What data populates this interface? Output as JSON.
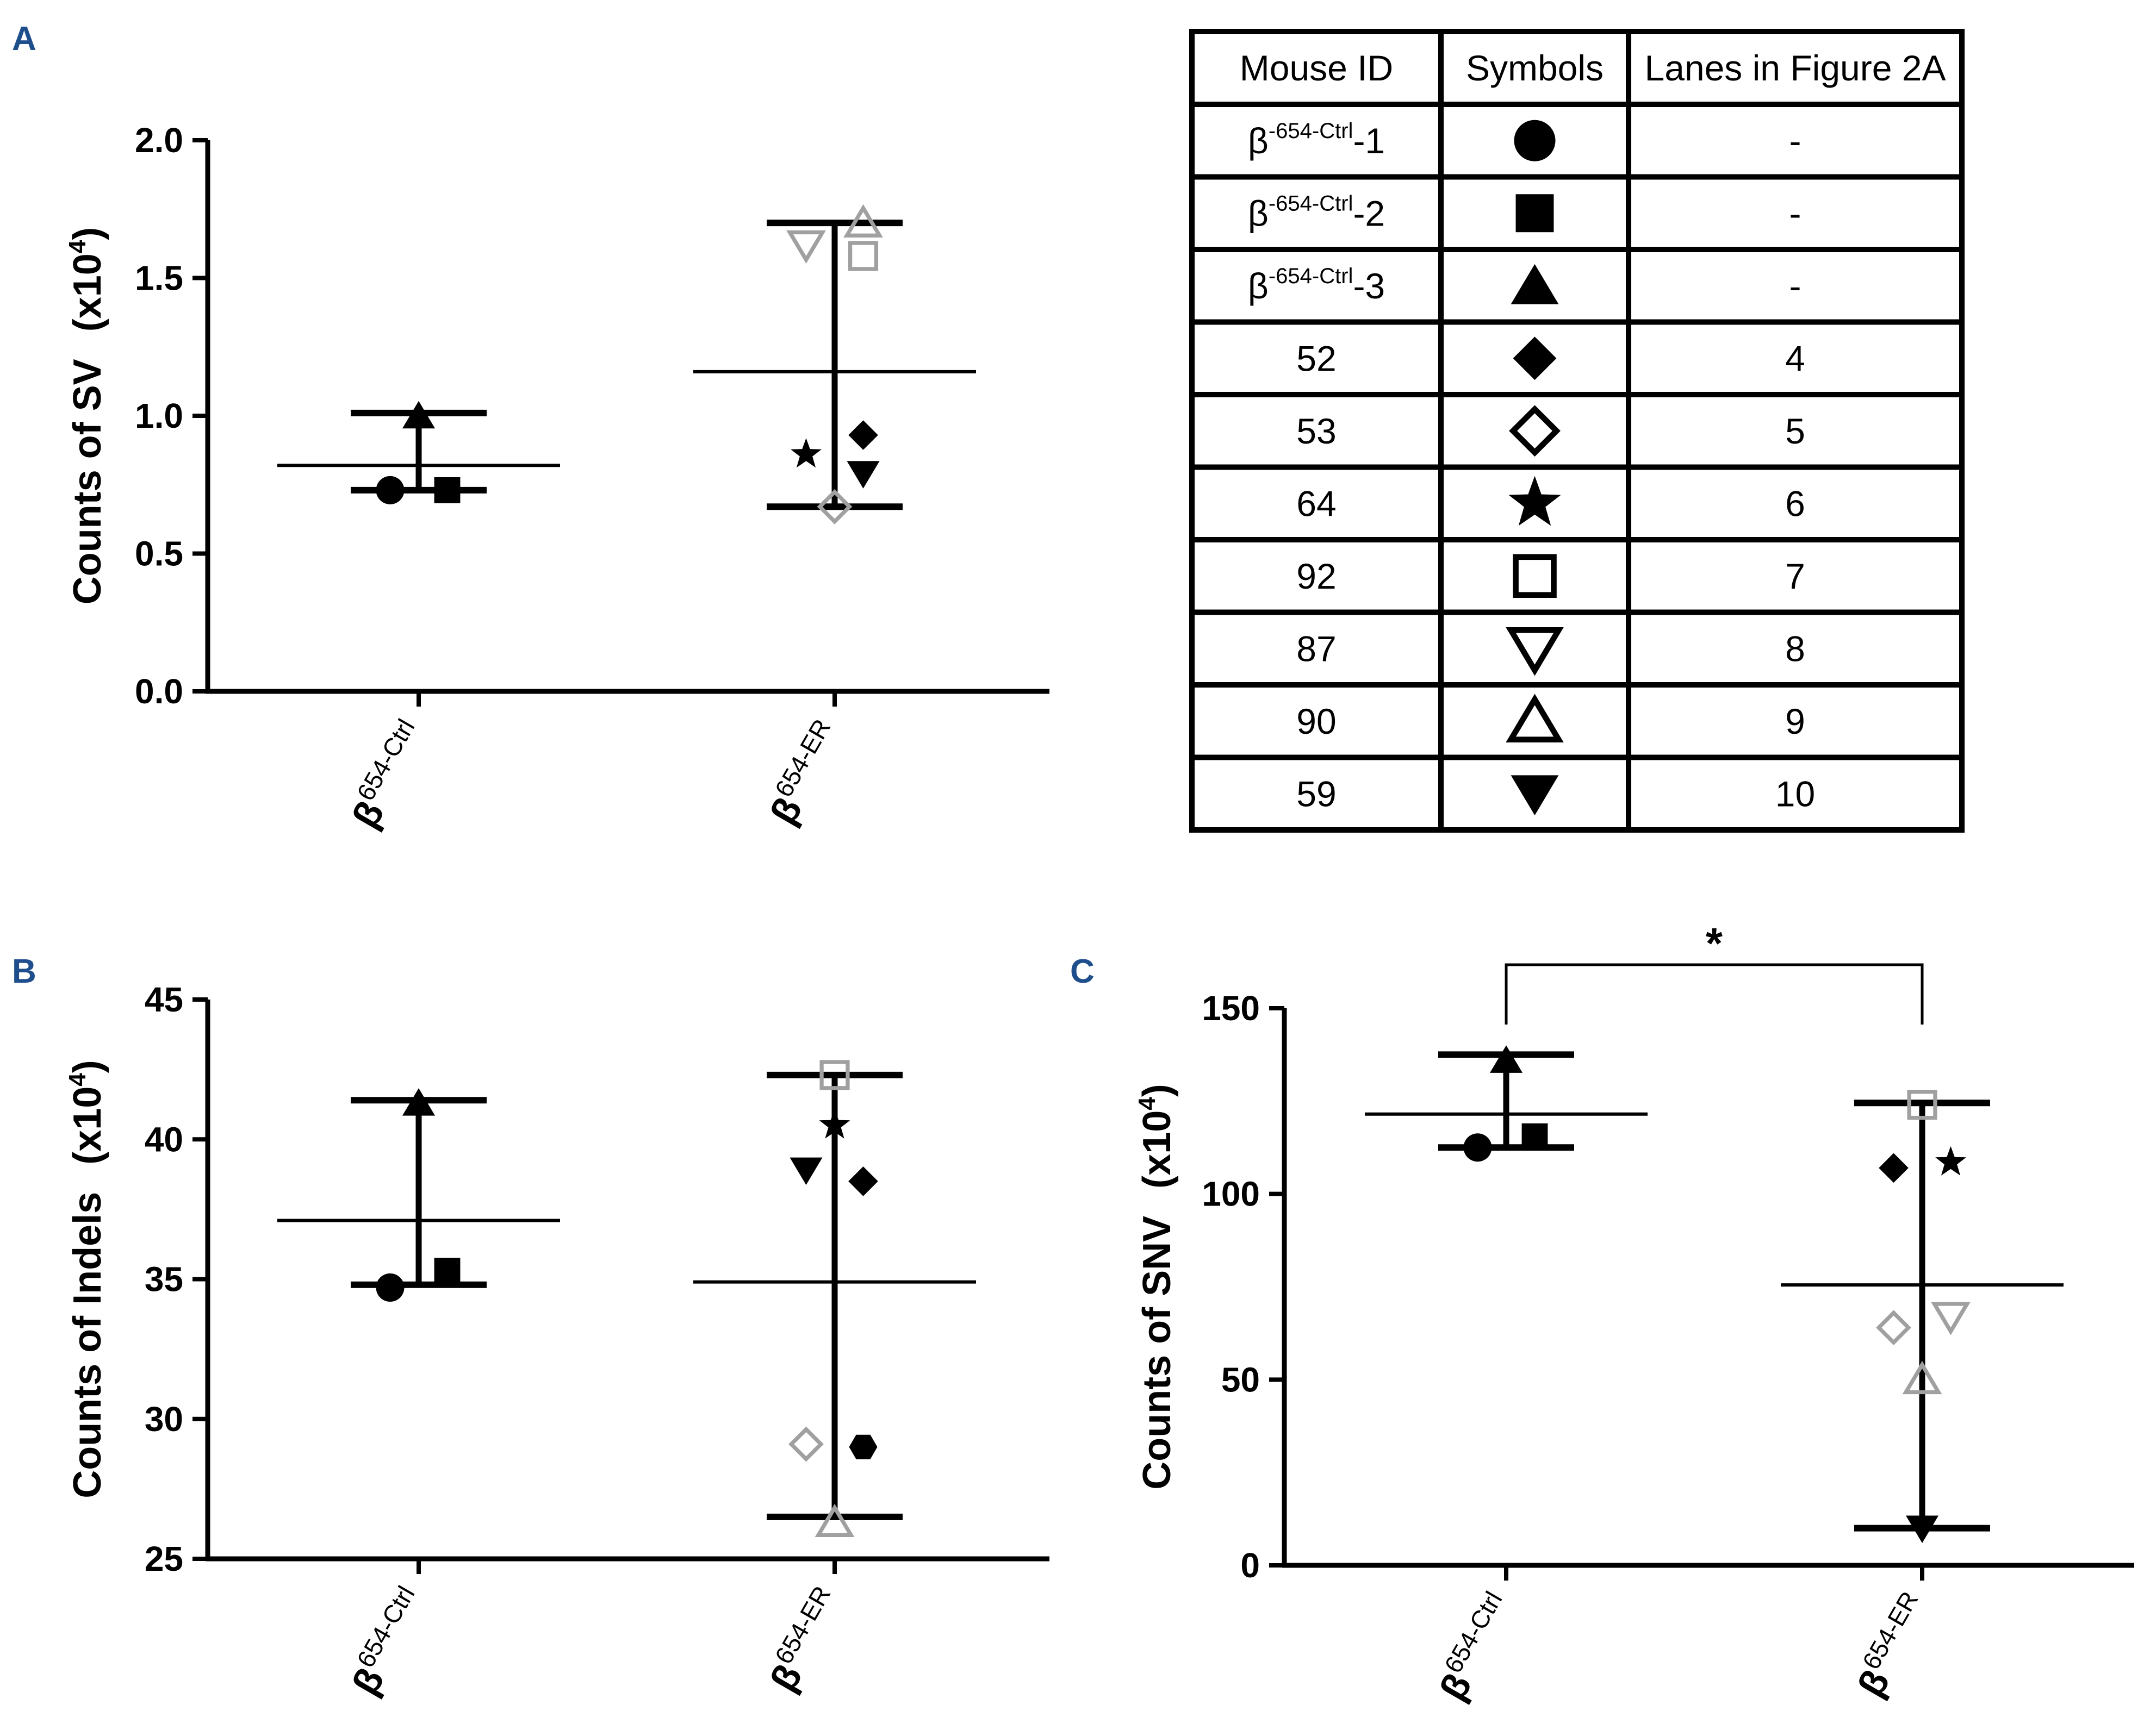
{
  "panels": {
    "a": "A",
    "b": "B",
    "c": "C"
  },
  "colors": {
    "panel_letter": "#1f4e8c",
    "black": "#000000",
    "grey": "#a0a0a0"
  },
  "chart_data": [
    {
      "id": "A",
      "type": "scatter",
      "title": "",
      "ylabel": "Counts of SV",
      "ylabel_unit": "(x10",
      "ylabel_unit_sup": "4",
      "ylabel_unit_close": ")",
      "ylim": [
        0,
        2.0
      ],
      "yticks": [
        "0.0",
        "0.5",
        "1.0",
        "1.5",
        "2.0"
      ],
      "categories": [
        {
          "beta": "β",
          "sup": "654-Ctrl"
        },
        {
          "beta": "β",
          "sup": "654-ER"
        }
      ],
      "summary": [
        {
          "mean": 0.82,
          "sd_low": 0.73,
          "sd_high": 1.01
        },
        {
          "mean": 1.16,
          "sd_low": 0.67,
          "sd_high": 1.7
        }
      ],
      "points": [
        {
          "group": 0,
          "symbol": "circle",
          "fill": true,
          "color": "#000000",
          "value": 0.73,
          "dx": -0.35
        },
        {
          "group": 0,
          "symbol": "square",
          "fill": true,
          "color": "#000000",
          "value": 0.73,
          "dx": 0.35
        },
        {
          "group": 0,
          "symbol": "triangle-up",
          "fill": true,
          "color": "#000000",
          "value": 1.0,
          "dx": 0.0
        },
        {
          "group": 1,
          "symbol": "triangle-up",
          "fill": false,
          "color": "#a0a0a0",
          "value": 1.7,
          "dx": 0.35
        },
        {
          "group": 1,
          "symbol": "triangle-down",
          "fill": false,
          "color": "#a0a0a0",
          "value": 1.62,
          "dx": -0.35
        },
        {
          "group": 1,
          "symbol": "square",
          "fill": false,
          "color": "#a0a0a0",
          "value": 1.58,
          "dx": 0.35
        },
        {
          "group": 1,
          "symbol": "star",
          "fill": true,
          "color": "#000000",
          "value": 0.86,
          "dx": -0.35
        },
        {
          "group": 1,
          "symbol": "diamond",
          "fill": true,
          "color": "#000000",
          "value": 0.93,
          "dx": 0.35
        },
        {
          "group": 1,
          "symbol": "triangle-down",
          "fill": true,
          "color": "#000000",
          "value": 0.79,
          "dx": 0.35
        },
        {
          "group": 1,
          "symbol": "diamond",
          "fill": false,
          "color": "#a0a0a0",
          "value": 0.67,
          "dx": 0.0
        }
      ]
    },
    {
      "id": "B",
      "type": "scatter",
      "title": "",
      "ylabel": "Counts of Indels",
      "ylabel_unit": "(x10",
      "ylabel_unit_sup": "4",
      "ylabel_unit_close": ")",
      "ylim": [
        25,
        45
      ],
      "yticks": [
        "25",
        "30",
        "35",
        "40",
        "45"
      ],
      "categories": [
        {
          "beta": "β",
          "sup": "654-Ctrl"
        },
        {
          "beta": "β",
          "sup": "654-ER"
        }
      ],
      "summary": [
        {
          "mean": 37.1,
          "sd_low": 34.8,
          "sd_high": 41.4
        },
        {
          "mean": 34.9,
          "sd_low": 26.5,
          "sd_high": 42.3
        }
      ],
      "points": [
        {
          "group": 0,
          "symbol": "circle",
          "fill": true,
          "color": "#000000",
          "value": 34.7,
          "dx": -0.35
        },
        {
          "group": 0,
          "symbol": "square",
          "fill": true,
          "color": "#000000",
          "value": 35.3,
          "dx": 0.35
        },
        {
          "group": 0,
          "symbol": "triangle-up",
          "fill": true,
          "color": "#000000",
          "value": 41.3,
          "dx": 0.0
        },
        {
          "group": 1,
          "symbol": "square",
          "fill": false,
          "color": "#a0a0a0",
          "value": 42.3,
          "dx": 0.0
        },
        {
          "group": 1,
          "symbol": "star",
          "fill": true,
          "color": "#000000",
          "value": 40.5,
          "dx": 0.0
        },
        {
          "group": 1,
          "symbol": "triangle-down",
          "fill": true,
          "color": "#000000",
          "value": 38.9,
          "dx": -0.35
        },
        {
          "group": 1,
          "symbol": "diamond",
          "fill": true,
          "color": "#000000",
          "value": 38.5,
          "dx": 0.35
        },
        {
          "group": 1,
          "symbol": "diamond",
          "fill": false,
          "color": "#a0a0a0",
          "value": 29.1,
          "dx": -0.35
        },
        {
          "group": 1,
          "symbol": "hexagon",
          "fill": true,
          "color": "#000000",
          "value": 29.0,
          "dx": 0.35
        },
        {
          "group": 1,
          "symbol": "triangle-up",
          "fill": false,
          "color": "#a0a0a0",
          "value": 26.3,
          "dx": 0.0
        }
      ]
    },
    {
      "id": "C",
      "type": "scatter",
      "title": "",
      "ylabel": "Counts of SNV",
      "ylabel_unit": "(x10",
      "ylabel_unit_sup": "4",
      "ylabel_unit_close": ")",
      "ylim": [
        0,
        150
      ],
      "yticks": [
        "0",
        "50",
        "100",
        "150"
      ],
      "categories": [
        {
          "beta": "β",
          "sup": "654-Ctrl"
        },
        {
          "beta": "β",
          "sup": "654-ER"
        }
      ],
      "summary": [
        {
          "mean": 121.5,
          "sd_low": 112.5,
          "sd_high": 137.5
        },
        {
          "mean": 75.5,
          "sd_low": 10.0,
          "sd_high": 124.5
        }
      ],
      "points": [
        {
          "group": 0,
          "symbol": "circle",
          "fill": true,
          "color": "#000000",
          "value": 112.5,
          "dx": -0.35
        },
        {
          "group": 0,
          "symbol": "square",
          "fill": true,
          "color": "#000000",
          "value": 115.5,
          "dx": 0.35
        },
        {
          "group": 0,
          "symbol": "triangle-up",
          "fill": true,
          "color": "#000000",
          "value": 136.0,
          "dx": 0.0
        },
        {
          "group": 1,
          "symbol": "square",
          "fill": false,
          "color": "#a0a0a0",
          "value": 124.0,
          "dx": 0.0
        },
        {
          "group": 1,
          "symbol": "diamond",
          "fill": true,
          "color": "#000000",
          "value": 107.0,
          "dx": -0.35
        },
        {
          "group": 1,
          "symbol": "star",
          "fill": true,
          "color": "#000000",
          "value": 108.5,
          "dx": 0.35
        },
        {
          "group": 1,
          "symbol": "diamond",
          "fill": false,
          "color": "#a0a0a0",
          "value": 64.0,
          "dx": -0.35
        },
        {
          "group": 1,
          "symbol": "triangle-down",
          "fill": false,
          "color": "#a0a0a0",
          "value": 67.0,
          "dx": 0.35
        },
        {
          "group": 1,
          "symbol": "triangle-up",
          "fill": false,
          "color": "#a0a0a0",
          "value": 50.0,
          "dx": 0.0
        },
        {
          "group": 1,
          "symbol": "triangle-down",
          "fill": true,
          "color": "#000000",
          "value": 10.0,
          "dx": 0.0
        }
      ],
      "significance": {
        "label": "*",
        "from": 0,
        "to": 1
      }
    }
  ],
  "legend_table": {
    "headers": [
      "Mouse ID",
      "Symbols",
      "Lanes in Figure 2A"
    ],
    "rows": [
      {
        "id": "β",
        "id_sup": "-654-Ctrl",
        "id_suffix": "-1",
        "symbol": "circle",
        "fill": true,
        "lane": "-"
      },
      {
        "id": "β",
        "id_sup": "-654-Ctrl",
        "id_suffix": "-2",
        "symbol": "square",
        "fill": true,
        "lane": "-"
      },
      {
        "id": "β",
        "id_sup": "-654-Ctrl",
        "id_suffix": "-3",
        "symbol": "triangle-up",
        "fill": true,
        "lane": "-"
      },
      {
        "id": "52",
        "symbol": "diamond",
        "fill": true,
        "lane": "4"
      },
      {
        "id": "53",
        "symbol": "diamond",
        "fill": false,
        "lane": "5"
      },
      {
        "id": "64",
        "symbol": "star",
        "fill": true,
        "lane": "6"
      },
      {
        "id": "92",
        "symbol": "square",
        "fill": false,
        "lane": "7"
      },
      {
        "id": "87",
        "symbol": "triangle-down",
        "fill": false,
        "lane": "8"
      },
      {
        "id": "90",
        "symbol": "triangle-up",
        "fill": false,
        "lane": "9"
      },
      {
        "id": "59",
        "symbol": "triangle-down",
        "fill": true,
        "lane": "10"
      }
    ]
  }
}
